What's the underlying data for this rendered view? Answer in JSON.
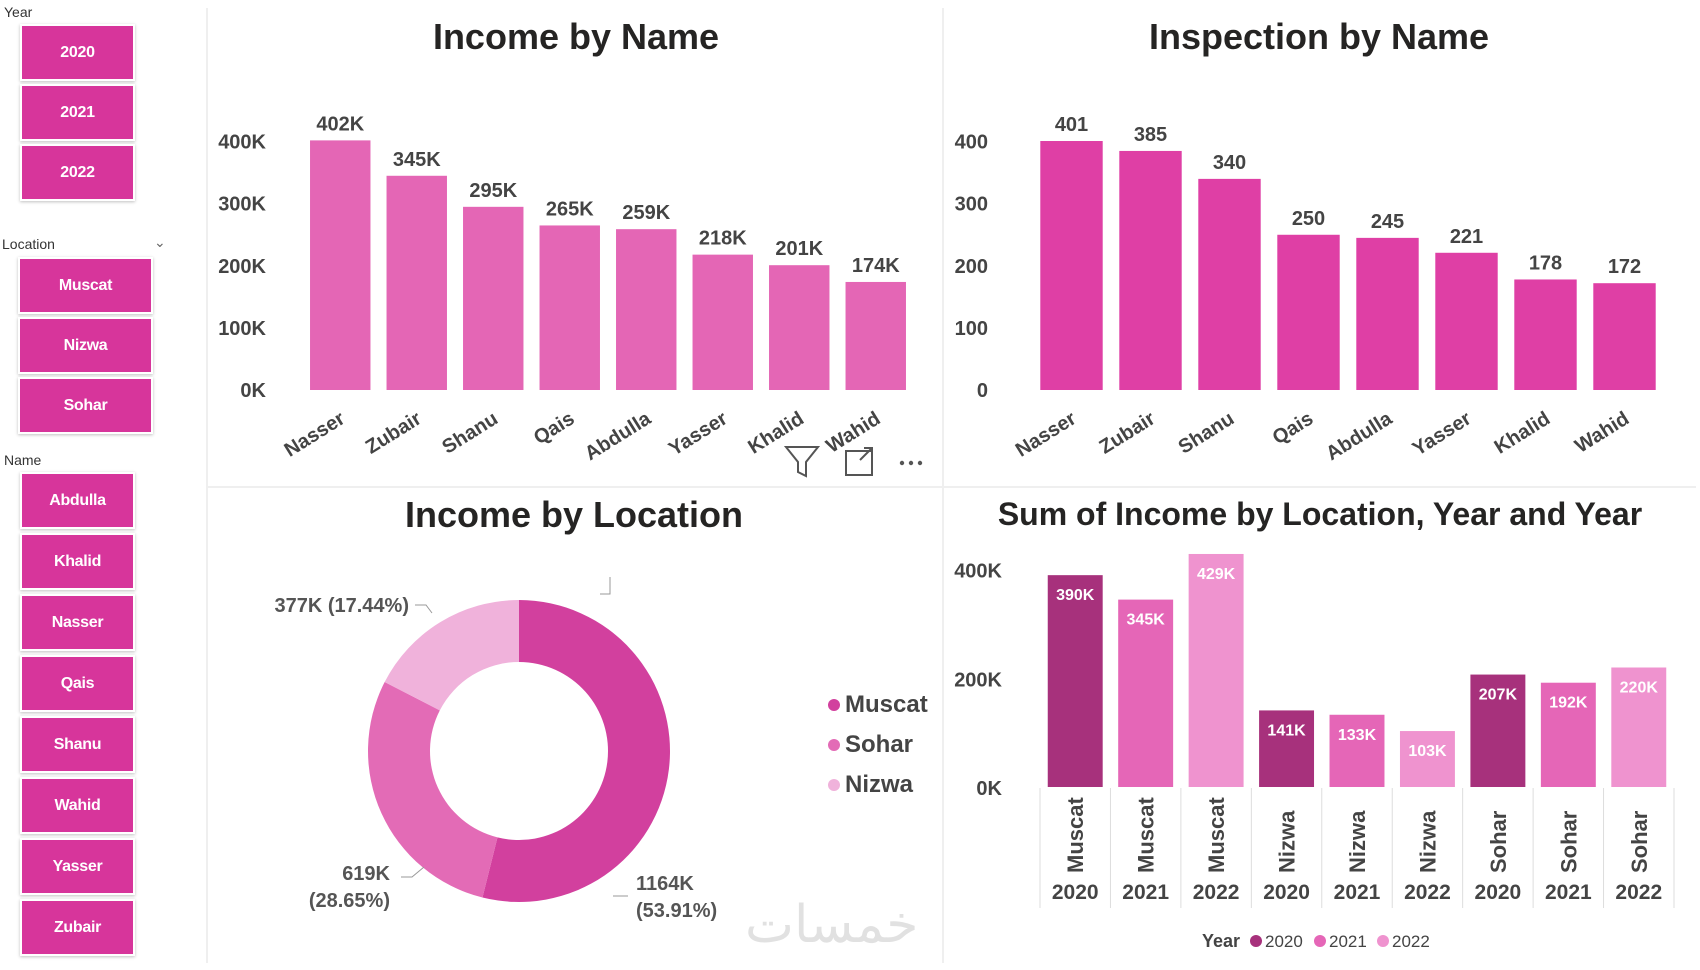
{
  "slicers": {
    "year": {
      "label": "Year",
      "items": [
        "2020",
        "2021",
        "2022"
      ]
    },
    "location": {
      "label": "Location",
      "items": [
        "Muscat",
        "Nizwa",
        "Sohar"
      ]
    },
    "name": {
      "label": "Name",
      "items": [
        "Abdulla",
        "Khalid",
        "Nasser",
        "Qais",
        "Shanu",
        "Wahid",
        "Yasser",
        "Zubair"
      ]
    }
  },
  "colors": {
    "slicer": "#d7359b",
    "income_bar": "#e466b5",
    "inspection_bar": "#df3fa5",
    "muscat": "#d2409e",
    "sohar": "#e36bb6",
    "nizwa": "#f0b2db",
    "y2020": "#a7317c",
    "y2021": "#e566b7",
    "y2022": "#ef93cf"
  },
  "watermark": "خمسات",
  "chart_data": [
    {
      "type": "bar",
      "title": "Income by Name",
      "categories": [
        "Nasser",
        "Zubair",
        "Shanu",
        "Qais",
        "Abdulla",
        "Yasser",
        "Khalid",
        "Wahid"
      ],
      "values": [
        402,
        345,
        295,
        265,
        259,
        218,
        201,
        174
      ],
      "data_labels": [
        "402K",
        "345K",
        "295K",
        "265K",
        "259K",
        "218K",
        "201K",
        "174K"
      ],
      "yticks": [
        0,
        100,
        200,
        300,
        400
      ],
      "ytick_labels": [
        "0K",
        "100K",
        "200K",
        "300K",
        "400K"
      ],
      "ylim": [
        0,
        430
      ],
      "xlabel": "",
      "ylabel": ""
    },
    {
      "type": "bar",
      "title": "Inspection by Name",
      "categories": [
        "Nasser",
        "Zubair",
        "Shanu",
        "Qais",
        "Abdulla",
        "Yasser",
        "Khalid",
        "Wahid"
      ],
      "values": [
        401,
        385,
        340,
        250,
        245,
        221,
        178,
        172
      ],
      "data_labels": [
        "401",
        "385",
        "340",
        "250",
        "245",
        "221",
        "178",
        "172"
      ],
      "yticks": [
        0,
        100,
        200,
        300,
        400
      ],
      "ytick_labels": [
        "0",
        "100",
        "200",
        "300",
        "400"
      ],
      "ylim": [
        0,
        430
      ],
      "xlabel": "",
      "ylabel": ""
    },
    {
      "type": "pie",
      "title": "Income by Location",
      "donut": true,
      "labels": [
        "Muscat",
        "Sohar",
        "Nizwa"
      ],
      "values": [
        1164,
        619,
        377
      ],
      "data_labels": [
        [
          "1164K",
          "(53.91%)"
        ],
        [
          "619K",
          "(28.65%)"
        ],
        [
          "377K (17.44%)"
        ]
      ],
      "legend": [
        "Muscat",
        "Sohar",
        "Nizwa"
      ],
      "legend_position": "right"
    },
    {
      "type": "bar",
      "title": "Sum of Income by Location, Year and Year",
      "categories": [
        "Muscat",
        "Muscat",
        "Muscat",
        "Nizwa",
        "Nizwa",
        "Nizwa",
        "Sohar",
        "Sohar",
        "Sohar"
      ],
      "years": [
        "2020",
        "2021",
        "2022",
        "2020",
        "2021",
        "2022",
        "2020",
        "2021",
        "2022"
      ],
      "values": [
        390,
        345,
        429,
        141,
        133,
        103,
        207,
        192,
        220
      ],
      "data_labels": [
        "390K",
        "345K",
        "429K",
        "141K",
        "133K",
        "103K",
        "207K",
        "192K",
        "220K"
      ],
      "yticks": [
        0,
        200,
        400
      ],
      "ytick_labels": [
        "0K",
        "200K",
        "400K"
      ],
      "ylim": [
        0,
        440
      ],
      "legend_title": "Year",
      "legend": [
        "2020",
        "2021",
        "2022"
      ],
      "legend_position": "bottom"
    }
  ]
}
